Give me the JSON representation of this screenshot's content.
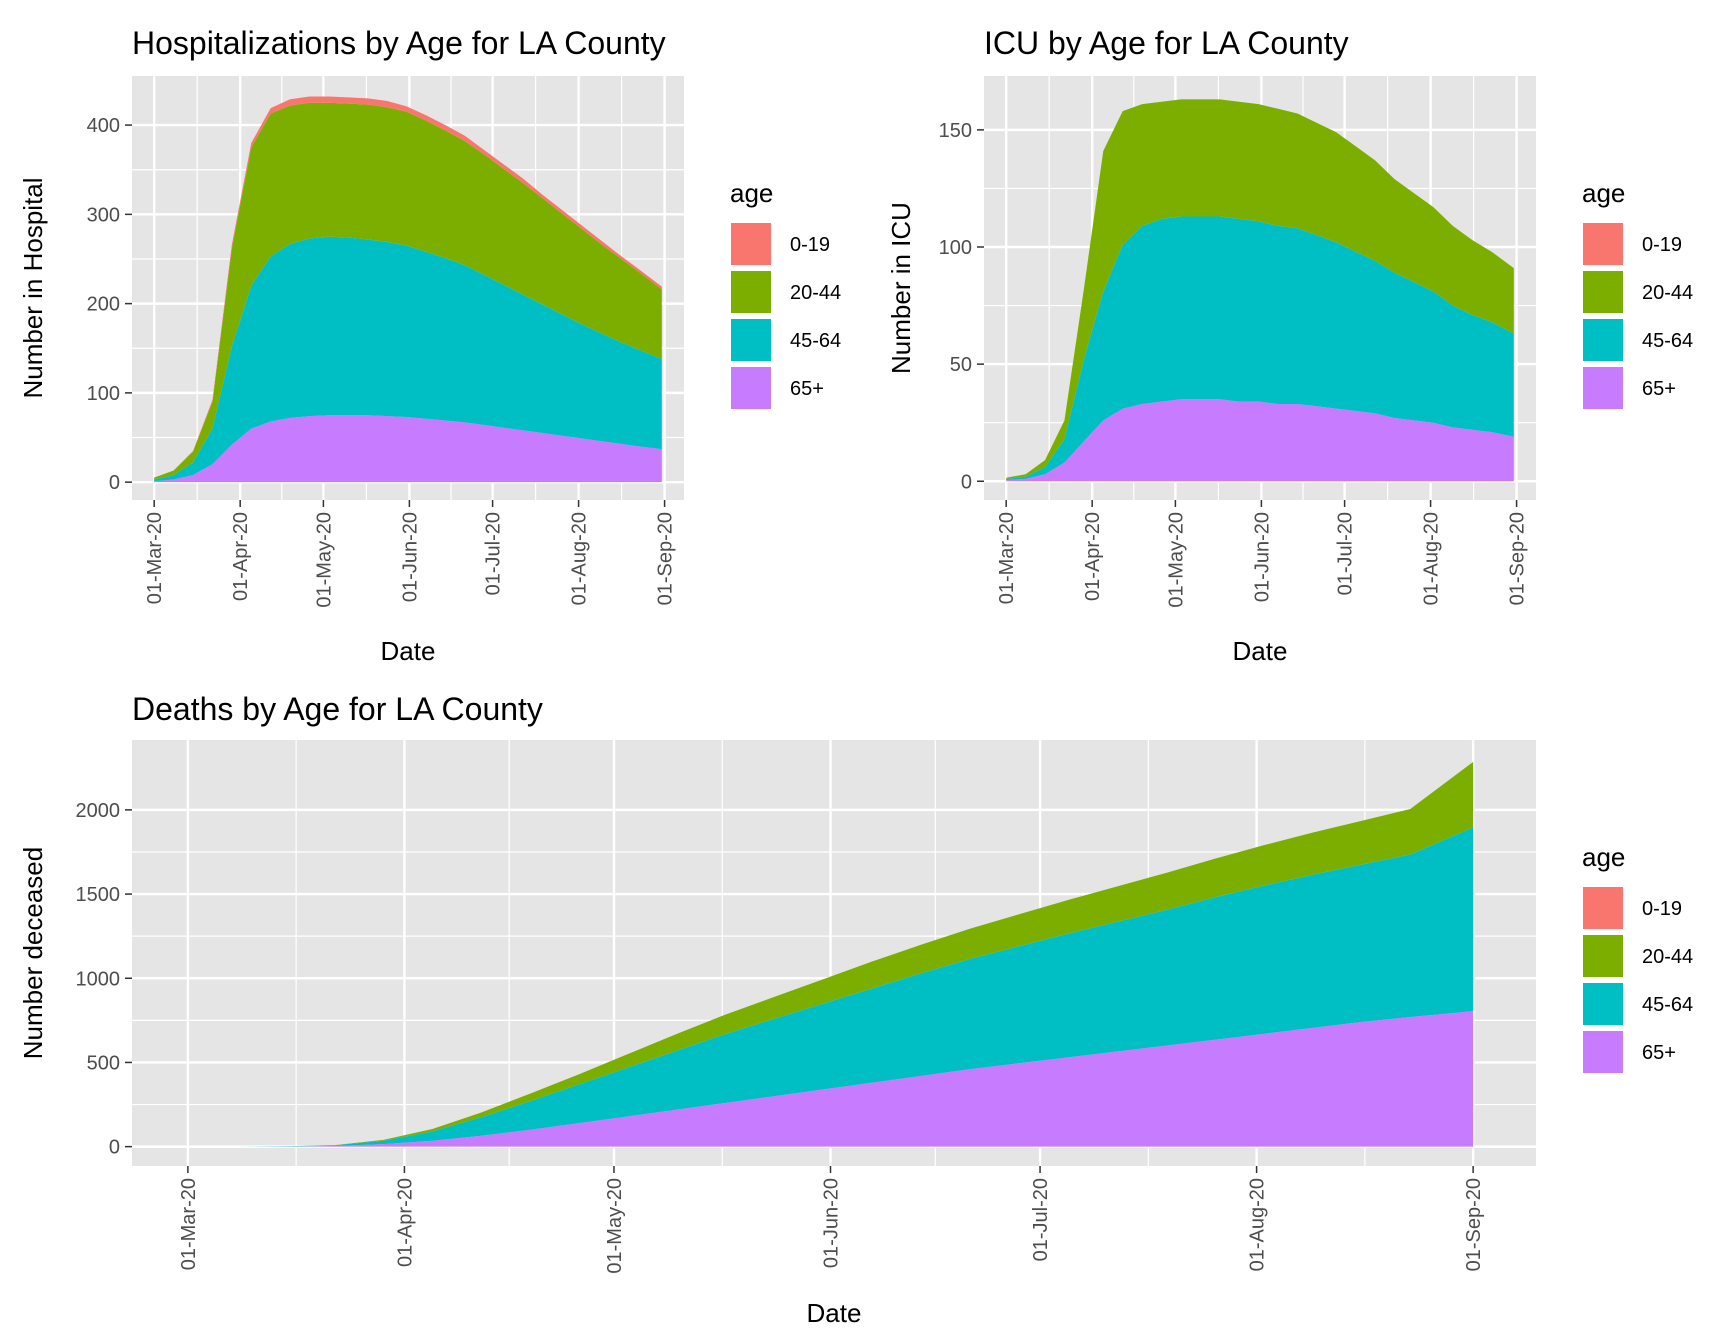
{
  "legend_colors": {
    "0-19": "#F8766D",
    "20-44": "#7CAE00",
    "45-64": "#00BFC4",
    "65+": "#C77CFF"
  },
  "panel_background": "#E5E5E5",
  "gridline_color": "#FFFFFF",
  "chart_data": [
    {
      "type": "area",
      "stacked": true,
      "title": "Hospitalizations by Age for LA County",
      "xlabel": "Date",
      "ylabel": "Number in Hospital",
      "legend_title": "age",
      "legend_position": "right",
      "grid": true,
      "xlim": [
        "2020-02-22",
        "2020-09-08"
      ],
      "ylim": [
        -20,
        455
      ],
      "x_ticks": [
        "2020-03-01",
        "2020-04-01",
        "2020-05-01",
        "2020-06-01",
        "2020-07-01",
        "2020-08-01",
        "2020-09-01"
      ],
      "x_tick_labels": [
        "01-Mar-20",
        "01-Apr-20",
        "01-May-20",
        "01-Jun-20",
        "01-Jul-20",
        "01-Aug-20",
        "01-Sep-20"
      ],
      "y_ticks": [
        0,
        100,
        200,
        300,
        400
      ],
      "x": [
        "2020-03-01",
        "2020-03-08",
        "2020-03-15",
        "2020-03-22",
        "2020-03-29",
        "2020-04-05",
        "2020-04-12",
        "2020-04-19",
        "2020-04-26",
        "2020-05-03",
        "2020-05-10",
        "2020-05-17",
        "2020-05-24",
        "2020-05-31",
        "2020-06-07",
        "2020-06-14",
        "2020-06-21",
        "2020-06-28",
        "2020-07-05",
        "2020-07-12",
        "2020-07-19",
        "2020-07-26",
        "2020-08-02",
        "2020-08-09",
        "2020-08-16",
        "2020-08-23",
        "2020-08-31"
      ],
      "series": [
        {
          "name": "65+",
          "values": [
            1,
            3,
            8,
            20,
            42,
            60,
            68,
            72,
            74,
            75,
            75,
            75,
            74,
            73,
            71,
            69,
            67,
            64,
            61,
            58,
            55,
            52,
            49,
            46,
            43,
            40,
            37
          ]
        },
        {
          "name": "45-64",
          "values": [
            2,
            5,
            14,
            40,
            110,
            160,
            185,
            195,
            199,
            200,
            199,
            197,
            195,
            192,
            187,
            182,
            176,
            168,
            160,
            152,
            144,
            136,
            128,
            121,
            114,
            108,
            101
          ]
        },
        {
          "name": "20-44",
          "values": [
            2,
            5,
            12,
            30,
            110,
            155,
            160,
            155,
            152,
            150,
            150,
            151,
            151,
            150,
            147,
            143,
            139,
            135,
            130,
            125,
            119,
            113,
            107,
            100,
            94,
            87,
            78
          ]
        },
        {
          "name": "0-19",
          "values": [
            0,
            0,
            1,
            2,
            4,
            5,
            6,
            7,
            7,
            7,
            7,
            7,
            7,
            6,
            6,
            6,
            6,
            5,
            5,
            5,
            4,
            4,
            4,
            4,
            3,
            3,
            3
          ]
        }
      ]
    },
    {
      "type": "area",
      "stacked": true,
      "title": "ICU by Age for LA County",
      "xlabel": "Date",
      "ylabel": "Number in ICU",
      "legend_title": "age",
      "legend_position": "right",
      "grid": true,
      "xlim": [
        "2020-02-22",
        "2020-09-08"
      ],
      "ylim": [
        -8,
        173
      ],
      "x_ticks": [
        "2020-03-01",
        "2020-04-01",
        "2020-05-01",
        "2020-06-01",
        "2020-07-01",
        "2020-08-01",
        "2020-09-01"
      ],
      "x_tick_labels": [
        "01-Mar-20",
        "01-Apr-20",
        "01-May-20",
        "01-Jun-20",
        "01-Jul-20",
        "01-Aug-20",
        "01-Sep-20"
      ],
      "y_ticks": [
        0,
        50,
        100,
        150
      ],
      "x": [
        "2020-03-01",
        "2020-03-08",
        "2020-03-15",
        "2020-03-22",
        "2020-03-29",
        "2020-04-05",
        "2020-04-12",
        "2020-04-19",
        "2020-04-26",
        "2020-05-03",
        "2020-05-10",
        "2020-05-17",
        "2020-05-24",
        "2020-05-31",
        "2020-06-07",
        "2020-06-14",
        "2020-06-21",
        "2020-06-28",
        "2020-07-05",
        "2020-07-12",
        "2020-07-19",
        "2020-07-26",
        "2020-08-02",
        "2020-08-09",
        "2020-08-16",
        "2020-08-23",
        "2020-08-31"
      ],
      "series": [
        {
          "name": "65+",
          "values": [
            0.5,
            1,
            3,
            8,
            17,
            26,
            31,
            33,
            34,
            35,
            35,
            35,
            34,
            34,
            33,
            33,
            32,
            31,
            30,
            29,
            27,
            26,
            25,
            23,
            22,
            21,
            19
          ]
        },
        {
          "name": "45-64",
          "values": [
            0.5,
            1,
            3,
            10,
            35,
            55,
            70,
            76,
            78,
            78,
            78,
            78,
            78,
            77,
            76,
            75,
            73,
            71,
            68,
            65,
            62,
            59,
            56,
            52,
            49,
            47,
            44
          ]
        },
        {
          "name": "20-44",
          "values": [
            0.5,
            1,
            3,
            8,
            30,
            60,
            57,
            52,
            50,
            50,
            50,
            50,
            50,
            50,
            50,
            49,
            48,
            47,
            45,
            43,
            40,
            38,
            36,
            34,
            32,
            30,
            28
          ]
        },
        {
          "name": "0-19",
          "values": [
            0,
            0,
            0,
            0,
            0,
            0,
            0,
            0,
            0,
            0,
            0,
            0,
            0,
            0,
            0,
            0,
            0,
            0,
            0,
            0,
            0,
            0,
            0,
            0,
            0,
            0,
            0
          ]
        }
      ]
    },
    {
      "type": "area",
      "stacked": true,
      "title": "Deaths by Age for LA County",
      "xlabel": "Date",
      "ylabel": "Number deceased",
      "legend_title": "age",
      "legend_position": "right",
      "grid": true,
      "xlim": [
        "2020-02-22",
        "2020-09-10"
      ],
      "ylim": [
        -115,
        2415
      ],
      "x_ticks": [
        "2020-03-01",
        "2020-04-01",
        "2020-05-01",
        "2020-06-01",
        "2020-07-01",
        "2020-08-01",
        "2020-09-01"
      ],
      "x_tick_labels": [
        "01-Mar-20",
        "01-Apr-20",
        "01-May-20",
        "01-Jun-20",
        "01-Jul-20",
        "01-Aug-20",
        "01-Sep-20"
      ],
      "y_ticks": [
        0,
        500,
        1000,
        1500,
        2000
      ],
      "x": [
        "2020-03-01",
        "2020-03-08",
        "2020-03-15",
        "2020-03-22",
        "2020-03-29",
        "2020-04-05",
        "2020-04-12",
        "2020-04-19",
        "2020-04-26",
        "2020-05-03",
        "2020-05-10",
        "2020-05-17",
        "2020-05-24",
        "2020-05-31",
        "2020-06-07",
        "2020-06-14",
        "2020-06-21",
        "2020-06-28",
        "2020-07-05",
        "2020-07-12",
        "2020-07-19",
        "2020-07-26",
        "2020-08-02",
        "2020-08-09",
        "2020-08-16",
        "2020-08-23",
        "2020-09-01"
      ],
      "series": [
        {
          "name": "65+",
          "values": [
            0,
            0,
            1,
            4,
            15,
            35,
            65,
            100,
            140,
            180,
            220,
            260,
            300,
            340,
            380,
            420,
            460,
            495,
            530,
            565,
            600,
            635,
            670,
            705,
            740,
            770,
            805
          ]
        },
        {
          "name": "45-64",
          "values": [
            0,
            0,
            1,
            4,
            20,
            55,
            110,
            170,
            230,
            290,
            350,
            410,
            460,
            510,
            560,
            610,
            655,
            695,
            735,
            770,
            805,
            845,
            880,
            910,
            935,
            965,
            1090
          ]
        },
        {
          "name": "20-44",
          "values": [
            0,
            0,
            0,
            1,
            5,
            15,
            28,
            45,
            60,
            80,
            100,
            115,
            130,
            145,
            160,
            170,
            180,
            190,
            200,
            210,
            220,
            230,
            240,
            250,
            260,
            270,
            390
          ]
        },
        {
          "name": "0-19",
          "values": [
            0,
            0,
            0,
            0,
            0,
            0,
            0,
            0,
            0,
            0,
            0,
            0,
            0,
            0,
            0,
            0,
            0,
            0,
            0,
            0,
            0,
            0,
            0,
            0,
            0,
            0,
            0
          ]
        }
      ]
    }
  ]
}
